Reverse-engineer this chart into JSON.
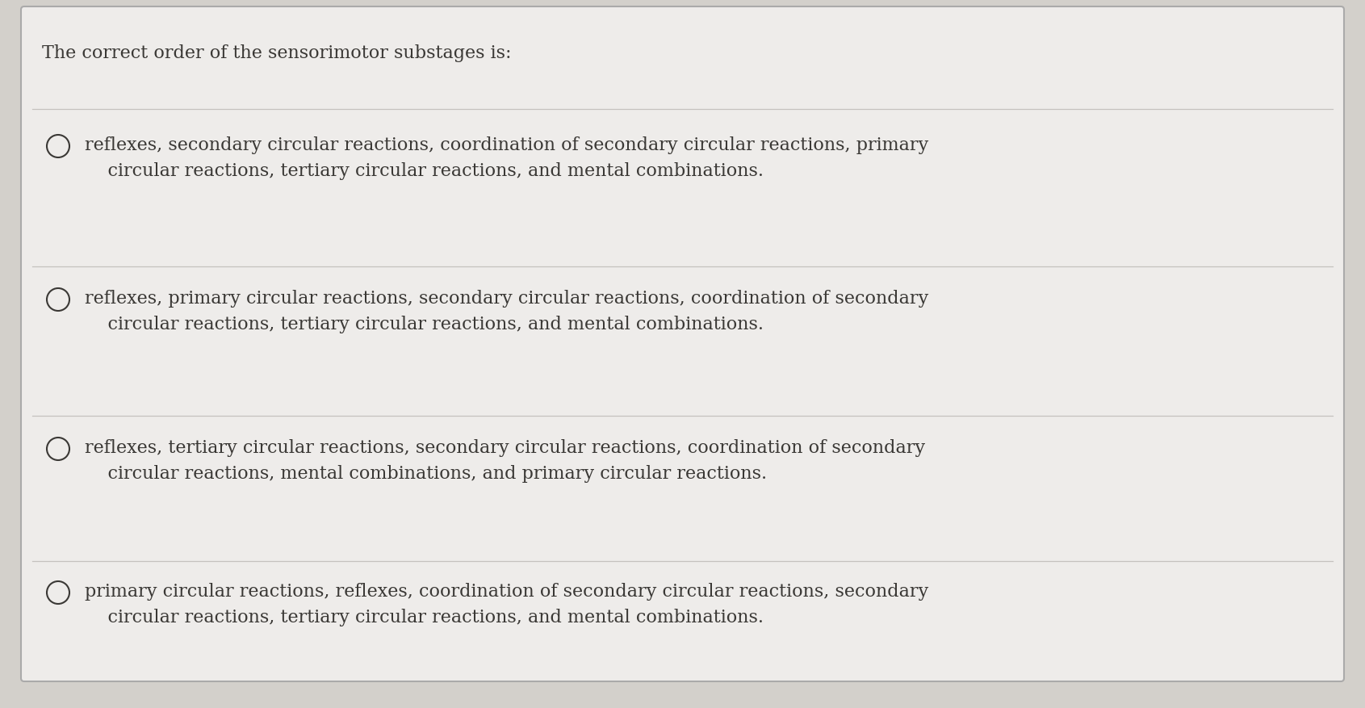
{
  "background_color": "#d3d0cb",
  "card_color": "#eeecea",
  "card_border_color": "#aaaaaa",
  "text_color": "#3a3835",
  "line_color": "#c5c2be",
  "question": "The correct order of the sensorimotor substages is:",
  "question_fontsize": 16,
  "options": [
    "reflexes, secondary circular reactions, coordination of secondary circular reactions, primary\n    circular reactions, tertiary circular reactions, and mental combinations.",
    "reflexes, primary circular reactions, secondary circular reactions, coordination of secondary\n    circular reactions, tertiary circular reactions, and mental combinations.",
    "reflexes, tertiary circular reactions, secondary circular reactions, coordination of secondary\n    circular reactions, mental combinations, and primary circular reactions.",
    "primary circular reactions, reflexes, coordination of secondary circular reactions, secondary\n    circular reactions, tertiary circular reactions, and mental combinations."
  ],
  "option_fontsize": 16,
  "figsize": [
    16.91,
    8.77
  ],
  "dpi": 100
}
